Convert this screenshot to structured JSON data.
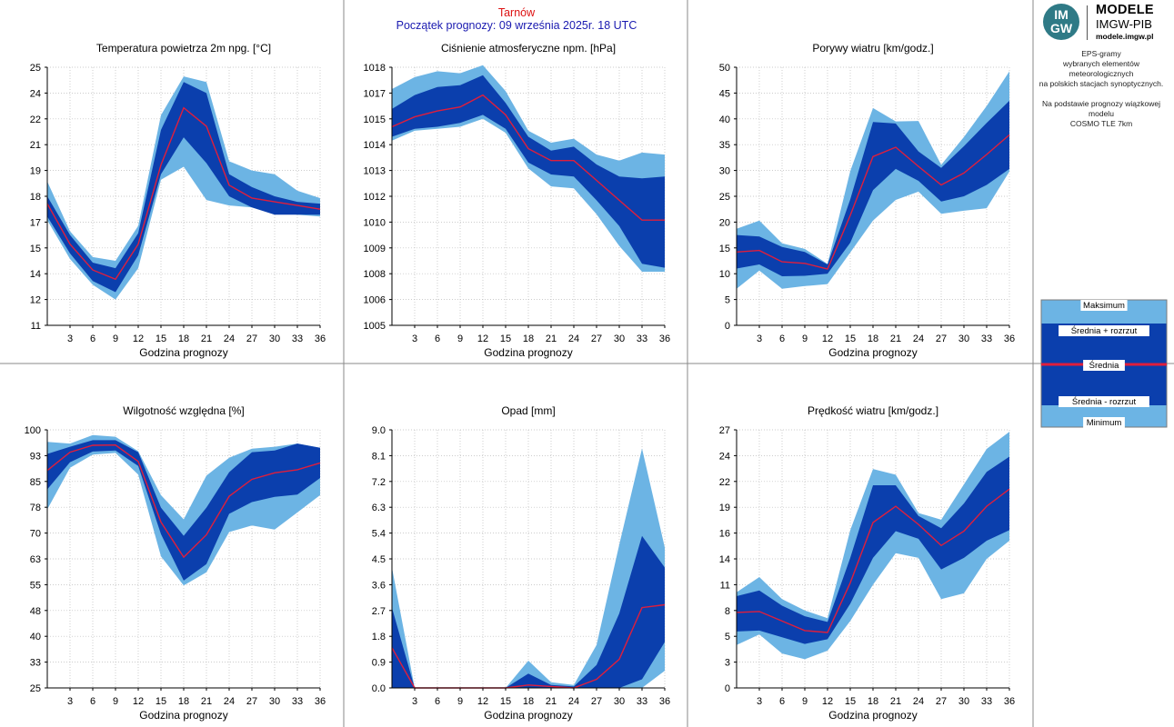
{
  "header": {
    "station": "Tarnów",
    "forecast_start": "Początek prognozy: 09 września 2025r. 18 UTC"
  },
  "logo": {
    "mark_top": "IM",
    "mark_bottom": "GW",
    "name": "MODELE",
    "org": "IMGW-PIB",
    "url": "modele.imgw.pl"
  },
  "description": {
    "line1": "EPS-gramy",
    "line2": "wybranych elementów meteorologicznych",
    "line3": "na polskich stacjach  synoptycznych.",
    "line4": "Na podstawie prognozy wiązkowej modelu",
    "line5": "COSMO TLE 7km"
  },
  "legend": {
    "max": "Maksimum",
    "mean_plus": "Średnia + rozrzut",
    "mean": "Średnia",
    "mean_minus": "Średnia - rozrzut",
    "min": "Minimum"
  },
  "colors": {
    "outer_band": "#6cb4e4",
    "inner_band": "#0b3fad",
    "mean_line": "#e01e3c",
    "grid": "#bbbbbb",
    "station": "#dd1111",
    "forecast_start": "#1a1ab0"
  },
  "chart_data": [
    {
      "type": "area",
      "title": "Temperatura powietrza 2m npg. [°C]",
      "xlabel": "Godzina prognozy",
      "x": [
        0,
        3,
        6,
        9,
        12,
        15,
        18,
        21,
        24,
        27,
        30,
        33,
        36
      ],
      "xticks": [
        "3",
        "6",
        "9",
        "12",
        "15",
        "18",
        "21",
        "24",
        "27",
        "30",
        "33",
        "36"
      ],
      "yticks": [
        "11",
        "12",
        "14",
        "15",
        "17",
        "18",
        "19",
        "21",
        "22",
        "24",
        "25"
      ],
      "ylim": [
        11,
        25
      ],
      "series": [
        {
          "name": "Maksimum",
          "values": [
            18.8,
            16.1,
            14.7,
            14.5,
            16.4,
            22.4,
            24.5,
            24.2,
            19.9,
            19.4,
            19.2,
            18.3,
            17.9
          ]
        },
        {
          "name": "Średnia + rozrzut",
          "values": [
            18.0,
            15.9,
            14.4,
            14.1,
            16.0,
            21.6,
            24.2,
            23.6,
            19.2,
            18.5,
            18.0,
            17.7,
            17.6
          ]
        },
        {
          "name": "Średnia",
          "values": [
            17.6,
            15.4,
            14.0,
            13.5,
            15.4,
            19.7,
            22.8,
            21.8,
            18.6,
            17.9,
            17.7,
            17.5,
            17.3
          ]
        },
        {
          "name": "Średnia - rozrzut",
          "values": [
            16.9,
            14.9,
            13.4,
            12.8,
            14.8,
            19.2,
            21.2,
            19.8,
            18.0,
            17.4,
            17.0,
            17.0,
            17.0
          ]
        },
        {
          "name": "Minimum",
          "values": [
            16.7,
            14.6,
            13.2,
            12.4,
            14.1,
            18.9,
            19.6,
            17.8,
            17.5,
            17.4,
            17.1,
            17.0,
            16.9
          ]
        }
      ]
    },
    {
      "type": "area",
      "title": "Ciśnienie atmosferyczne npm. [hPa]",
      "xlabel": "Godzina prognozy",
      "x": [
        0,
        3,
        6,
        9,
        12,
        15,
        18,
        21,
        24,
        27,
        30,
        33,
        36
      ],
      "xticks": [
        "3",
        "6",
        "9",
        "12",
        "15",
        "18",
        "21",
        "24",
        "27",
        "30",
        "33",
        "36"
      ],
      "yticks": [
        "1005",
        "1006",
        "1008",
        "1009",
        "1010",
        "1012",
        "1013",
        "1014",
        "1015",
        "1017",
        "1018"
      ],
      "ylim": [
        1005,
        1018
      ],
      "series": [
        {
          "name": "Maksimum",
          "values": [
            1016.9,
            1017.5,
            1017.8,
            1017.7,
            1018.1,
            1016.8,
            1014.8,
            1014.2,
            1014.4,
            1013.6,
            1013.3,
            1013.7,
            1013.6
          ]
        },
        {
          "name": "Średnia + rozrzut",
          "values": [
            1015.9,
            1016.6,
            1017.0,
            1017.1,
            1017.6,
            1016.2,
            1014.5,
            1013.8,
            1014.0,
            1013.1,
            1012.5,
            1012.4,
            1012.5
          ]
        },
        {
          "name": "Średnia",
          "values": [
            1015.0,
            1015.5,
            1015.8,
            1016.0,
            1016.6,
            1015.6,
            1013.9,
            1013.3,
            1013.3,
            1012.3,
            1011.3,
            1010.3,
            1010.3
          ]
        },
        {
          "name": "Średnia - rozrzut",
          "values": [
            1014.5,
            1014.9,
            1015.0,
            1015.2,
            1015.6,
            1014.9,
            1013.2,
            1012.6,
            1012.5,
            1011.3,
            1010.0,
            1008.1,
            1007.9
          ]
        },
        {
          "name": "Minimum",
          "values": [
            1014.3,
            1014.8,
            1014.9,
            1015.0,
            1015.4,
            1014.7,
            1012.9,
            1012.0,
            1011.9,
            1010.6,
            1009.0,
            1007.7,
            1007.7
          ]
        }
      ]
    },
    {
      "type": "area",
      "title": "Porywy wiatru [km/godz.]",
      "xlabel": "Godzina prognozy",
      "x": [
        0,
        3,
        6,
        9,
        12,
        15,
        18,
        21,
        24,
        27,
        30,
        33,
        36
      ],
      "xticks": [
        "3",
        "6",
        "9",
        "12",
        "15",
        "18",
        "21",
        "24",
        "27",
        "30",
        "33",
        "36"
      ],
      "yticks": [
        "0",
        "5",
        "10",
        "15",
        "20",
        "25",
        "30",
        "35",
        "40",
        "45",
        "50"
      ],
      "ylim": [
        0,
        50
      ],
      "series": [
        {
          "name": "Maksimum",
          "values": [
            18.7,
            20.3,
            15.9,
            14.8,
            11.9,
            29.9,
            42.1,
            39.5,
            39.6,
            31.1,
            36.5,
            42.5,
            49.2
          ]
        },
        {
          "name": "Średnia + rozrzut",
          "values": [
            17.5,
            17.2,
            15.2,
            14.2,
            11.8,
            24.4,
            39.4,
            39.1,
            33.7,
            30.5,
            34.7,
            39.2,
            43.5
          ]
        },
        {
          "name": "Średnia",
          "values": [
            14.2,
            14.5,
            12.3,
            12.0,
            10.9,
            21.3,
            32.7,
            34.5,
            30.8,
            27.2,
            29.5,
            33.1,
            36.9
          ]
        },
        {
          "name": "Średnia - rozrzut",
          "values": [
            11.0,
            11.8,
            9.5,
            9.6,
            10.0,
            16.0,
            26.2,
            30.3,
            28.0,
            24.0,
            25.0,
            27.2,
            30.3
          ]
        },
        {
          "name": "Minimum",
          "values": [
            7.1,
            10.6,
            7.1,
            7.6,
            8.0,
            14.1,
            20.3,
            24.3,
            25.9,
            21.6,
            22.2,
            22.7,
            29.8
          ]
        }
      ]
    },
    {
      "type": "area",
      "title": "Wilgotność względna [%]",
      "xlabel": "Godzina prognozy",
      "x": [
        0,
        3,
        6,
        9,
        12,
        15,
        18,
        21,
        24,
        27,
        30,
        33,
        36
      ],
      "xticks": [
        "3",
        "6",
        "9",
        "12",
        "15",
        "18",
        "21",
        "24",
        "27",
        "30",
        "33",
        "36"
      ],
      "yticks": [
        "25",
        "33",
        "40",
        "48",
        "55",
        "63",
        "70",
        "78",
        "85",
        "93",
        "100"
      ],
      "ylim": [
        25,
        100
      ],
      "series": [
        {
          "name": "Maksimum",
          "values": [
            96.5,
            96.0,
            98.5,
            98.0,
            93.8,
            81.0,
            74.0,
            86.7,
            91.9,
            94.5,
            95.1,
            96.0,
            94.8
          ]
        },
        {
          "name": "Średnia + rozrzut",
          "values": [
            93.0,
            95.1,
            97.0,
            97.0,
            93.5,
            77.4,
            69.2,
            77.4,
            87.7,
            93.5,
            94.0,
            96.0,
            94.8
          ]
        },
        {
          "name": "Średnia",
          "values": [
            88.2,
            93.5,
            95.5,
            95.6,
            90.8,
            73.2,
            63.0,
            69.5,
            80.7,
            85.6,
            87.5,
            88.4,
            90.4
          ]
        },
        {
          "name": "Średnia - rozrzut",
          "values": [
            82.7,
            90.6,
            93.7,
            94.0,
            89.5,
            69.7,
            56.2,
            61.0,
            75.6,
            79.0,
            80.5,
            81.2,
            86.0
          ]
        },
        {
          "name": "Minimum",
          "values": [
            76.9,
            89.0,
            92.8,
            93.3,
            87.0,
            63.2,
            54.8,
            58.6,
            70.3,
            72.2,
            71.0,
            76.0,
            81.0
          ]
        }
      ]
    },
    {
      "type": "area",
      "title": "Opad [mm]",
      "xlabel": "Godzina prognozy",
      "x": [
        0,
        3,
        6,
        9,
        12,
        15,
        18,
        21,
        24,
        27,
        30,
        33,
        36
      ],
      "xticks": [
        "3",
        "6",
        "9",
        "12",
        "15",
        "18",
        "21",
        "24",
        "27",
        "30",
        "33",
        "36"
      ],
      "yticks": [
        "0.0",
        "0.9",
        "1.8",
        "2.7",
        "3.6",
        "4.5",
        "5.4",
        "6.3",
        "7.2",
        "8.1",
        "9.0"
      ],
      "ylim": [
        0,
        9
      ],
      "series": [
        {
          "name": "Maksimum",
          "values": [
            4.2,
            0.0,
            0.0,
            0.0,
            0.0,
            0.0,
            0.95,
            0.2,
            0.1,
            1.5,
            5.0,
            8.35,
            4.9
          ]
        },
        {
          "name": "Średnia + rozrzut",
          "values": [
            2.8,
            0.0,
            0.0,
            0.0,
            0.0,
            0.0,
            0.5,
            0.1,
            0.05,
            0.8,
            2.6,
            5.3,
            4.2
          ]
        },
        {
          "name": "Średnia",
          "values": [
            1.4,
            0.0,
            0.0,
            0.0,
            0.0,
            0.0,
            0.1,
            0.05,
            0.0,
            0.3,
            1.0,
            2.8,
            2.9
          ]
        },
        {
          "name": "Średnia - rozrzut",
          "values": [
            0.0,
            0.0,
            0.0,
            0.0,
            0.0,
            0.0,
            0.0,
            0.0,
            0.0,
            0.0,
            0.0,
            0.3,
            1.6
          ]
        },
        {
          "name": "Minimum",
          "values": [
            0.0,
            0.0,
            0.0,
            0.0,
            0.0,
            0.0,
            0.0,
            0.0,
            0.0,
            0.0,
            0.0,
            0.0,
            0.6
          ]
        }
      ]
    },
    {
      "type": "area",
      "title": "Prędkość wiatru [km/godz.]",
      "xlabel": "Godzina prognozy",
      "x": [
        0,
        3,
        6,
        9,
        12,
        15,
        18,
        21,
        24,
        27,
        30,
        33,
        36
      ],
      "xticks": [
        "3",
        "6",
        "9",
        "12",
        "15",
        "18",
        "21",
        "24",
        "27",
        "30",
        "33",
        "36"
      ],
      "yticks": [
        "0",
        "3",
        "5",
        "8",
        "11",
        "14",
        "16",
        "19",
        "22",
        "24",
        "27"
      ],
      "ylim": [
        0,
        27
      ],
      "series": [
        {
          "name": "Maksimum",
          "values": [
            10.0,
            11.6,
            9.3,
            8.1,
            7.3,
            16.5,
            22.9,
            22.3,
            18.3,
            17.6,
            21.3,
            25.0,
            26.8
          ]
        },
        {
          "name": "Średnia + rozrzut",
          "values": [
            9.6,
            10.2,
            8.6,
            7.5,
            6.9,
            13.6,
            21.2,
            21.2,
            18.0,
            16.7,
            19.3,
            22.6,
            24.2
          ]
        },
        {
          "name": "Średnia",
          "values": [
            7.9,
            8.0,
            7.0,
            6.0,
            5.8,
            11.0,
            17.3,
            19.0,
            17.1,
            14.9,
            16.4,
            19.0,
            20.8
          ]
        },
        {
          "name": "Średnia - rozrzut",
          "values": [
            5.9,
            6.0,
            5.3,
            4.6,
            5.1,
            8.8,
            13.6,
            16.4,
            15.6,
            12.4,
            13.6,
            15.4,
            16.5
          ]
        },
        {
          "name": "Minimum",
          "values": [
            4.5,
            5.6,
            3.6,
            3.0,
            3.9,
            7.0,
            10.8,
            14.1,
            13.6,
            9.3,
            9.9,
            13.5,
            15.4
          ]
        }
      ]
    }
  ]
}
